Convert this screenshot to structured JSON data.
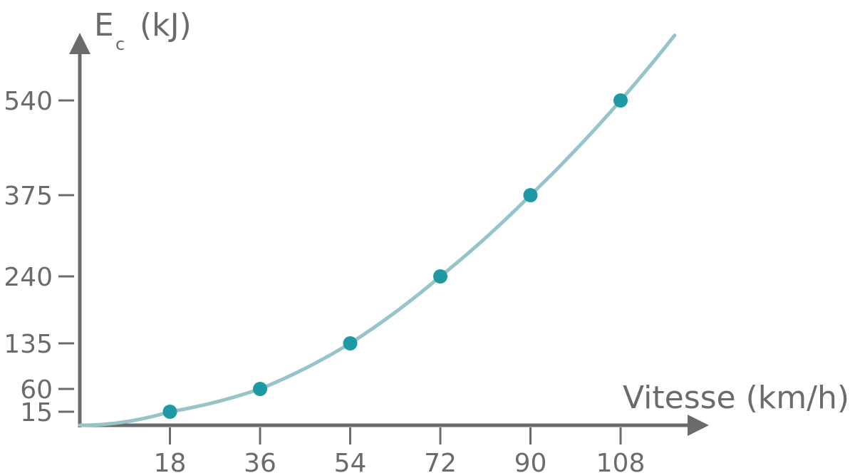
{
  "chart_data": {
    "type": "scatter",
    "x_label": "Vitesse (km/h)",
    "y_label_main": "E",
    "y_label_sub": "c",
    "y_label_unit": "(kJ)",
    "x_ticks": [
      "18",
      "36",
      "54",
      "72",
      "90",
      "108"
    ],
    "y_ticks": [
      "15",
      "60",
      "135",
      "240",
      "375",
      "540"
    ],
    "series": [
      {
        "x": [
          18,
          36,
          54,
          72,
          90,
          108
        ],
        "y": [
          15,
          60,
          135,
          240,
          375,
          540
        ]
      }
    ],
    "fit_curve": {
      "type": "quadratic",
      "note": "E = k * v^2"
    },
    "grid": false,
    "colors": {
      "axis": "#6b6b6b",
      "curve": "#96c4c9",
      "points": "#1f9aa4"
    }
  }
}
